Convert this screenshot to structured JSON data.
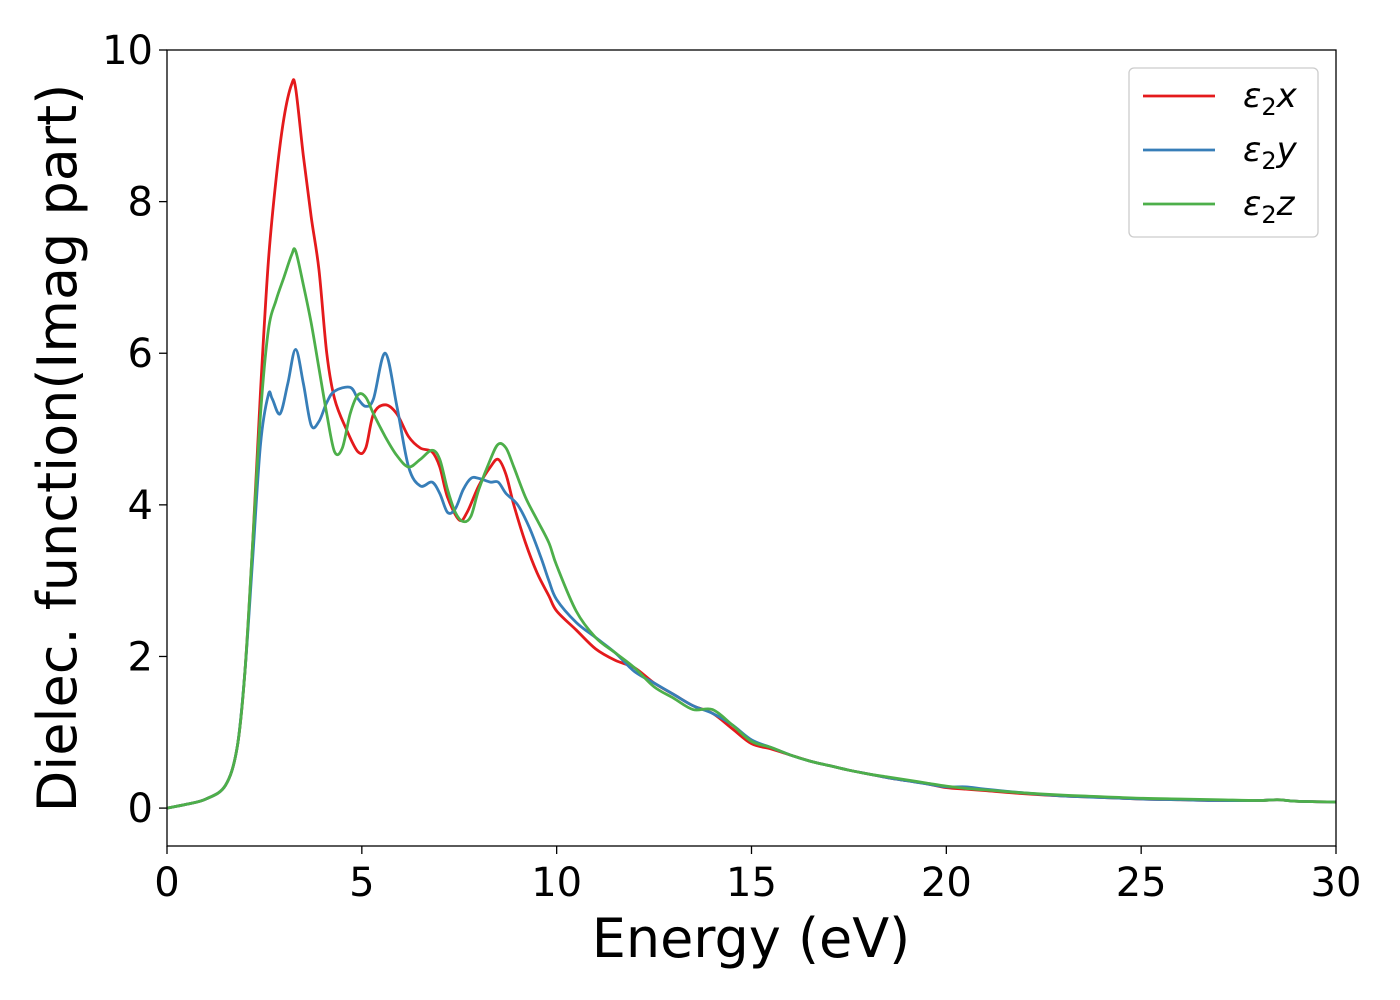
{
  "chart_data": {
    "type": "line",
    "xlabel": "Energy (eV)",
    "ylabel": "Dielec. function(Imag part)",
    "xlim": [
      0,
      30
    ],
    "ylim": [
      -0.5,
      10
    ],
    "xticks": [
      0,
      5,
      10,
      15,
      20,
      25,
      30
    ],
    "yticks": [
      0,
      2,
      4,
      6,
      8,
      10
    ],
    "grid": false,
    "legend_position": "top-right",
    "series": [
      {
        "name": "ε2x",
        "legend": {
          "prefix": "ε",
          "sub": "2",
          "suffix": "x"
        },
        "color": "#e41a1c",
        "x": [
          0,
          0.5,
          1,
          1.5,
          1.8,
          2.0,
          2.2,
          2.4,
          2.6,
          2.8,
          3.0,
          3.2,
          3.3,
          3.5,
          3.7,
          3.9,
          4.1,
          4.3,
          4.6,
          4.9,
          5.1,
          5.3,
          5.6,
          5.9,
          6.2,
          6.5,
          6.8,
          7.0,
          7.2,
          7.5,
          7.7,
          8.0,
          8.3,
          8.5,
          8.7,
          8.9,
          9.2,
          9.5,
          9.8,
          10.0,
          10.5,
          11.0,
          11.5,
          12.0,
          12.5,
          13.0,
          13.5,
          14.0,
          14.5,
          15.0,
          15.5,
          16.0,
          16.5,
          17.0,
          17.5,
          18.0,
          18.5,
          19.0,
          19.5,
          20.0,
          20.5,
          21.0,
          22.0,
          23.0,
          24.0,
          25.0,
          26.0,
          27.0,
          28.0,
          28.5,
          29.0,
          30.0
        ],
        "values": [
          0,
          0.05,
          0.12,
          0.3,
          0.8,
          1.8,
          3.5,
          5.5,
          7.2,
          8.3,
          9.1,
          9.55,
          9.5,
          8.6,
          7.8,
          7.1,
          6.0,
          5.4,
          5.0,
          4.7,
          4.75,
          5.2,
          5.32,
          5.2,
          4.9,
          4.75,
          4.7,
          4.5,
          4.1,
          3.8,
          3.9,
          4.25,
          4.5,
          4.6,
          4.4,
          4.0,
          3.5,
          3.1,
          2.8,
          2.6,
          2.35,
          2.1,
          1.95,
          1.85,
          1.65,
          1.5,
          1.35,
          1.25,
          1.05,
          0.85,
          0.78,
          0.7,
          0.62,
          0.56,
          0.5,
          0.45,
          0.4,
          0.36,
          0.32,
          0.27,
          0.25,
          0.23,
          0.19,
          0.16,
          0.14,
          0.12,
          0.11,
          0.1,
          0.1,
          0.11,
          0.09,
          0.08
        ]
      },
      {
        "name": "ε2y",
        "legend": {
          "prefix": "ε",
          "sub": "2",
          "suffix": "y"
        },
        "color": "#377eb8",
        "x": [
          0,
          0.5,
          1,
          1.5,
          1.8,
          2.0,
          2.2,
          2.4,
          2.6,
          2.7,
          2.9,
          3.1,
          3.3,
          3.5,
          3.7,
          3.9,
          4.1,
          4.3,
          4.7,
          4.9,
          5.1,
          5.3,
          5.6,
          5.9,
          6.2,
          6.5,
          6.8,
          7.0,
          7.2,
          7.4,
          7.6,
          7.8,
          8.0,
          8.3,
          8.5,
          8.7,
          9.0,
          9.3,
          9.6,
          9.8,
          10.0,
          10.5,
          11.0,
          11.5,
          12.0,
          12.5,
          13.0,
          13.5,
          14.0,
          14.5,
          15.0,
          15.5,
          16.0,
          16.5,
          17.0,
          17.5,
          18.0,
          18.5,
          19.0,
          19.5,
          20.0,
          20.5,
          21.0,
          22.0,
          23.0,
          24.0,
          25.0,
          26.0,
          27.0,
          28.0,
          28.5,
          29.0,
          30.0
        ],
        "values": [
          0,
          0.05,
          0.12,
          0.3,
          0.8,
          1.8,
          3.3,
          4.8,
          5.45,
          5.4,
          5.2,
          5.6,
          6.05,
          5.6,
          5.05,
          5.1,
          5.35,
          5.5,
          5.55,
          5.4,
          5.3,
          5.4,
          6.0,
          5.3,
          4.5,
          4.25,
          4.3,
          4.15,
          3.9,
          3.95,
          4.2,
          4.35,
          4.35,
          4.3,
          4.3,
          4.15,
          4.0,
          3.7,
          3.3,
          3.0,
          2.75,
          2.45,
          2.25,
          2.05,
          1.8,
          1.65,
          1.5,
          1.35,
          1.25,
          1.1,
          0.9,
          0.8,
          0.7,
          0.62,
          0.56,
          0.5,
          0.45,
          0.4,
          0.36,
          0.32,
          0.28,
          0.28,
          0.25,
          0.2,
          0.16,
          0.14,
          0.12,
          0.11,
          0.1,
          0.1,
          0.11,
          0.09,
          0.08
        ]
      },
      {
        "name": "ε2z",
        "legend": {
          "prefix": "ε",
          "sub": "2",
          "suffix": "z"
        },
        "color": "#4daf4a",
        "x": [
          0,
          0.5,
          1,
          1.5,
          1.8,
          2.0,
          2.2,
          2.4,
          2.6,
          2.8,
          3.0,
          3.2,
          3.3,
          3.5,
          3.7,
          3.9,
          4.1,
          4.3,
          4.5,
          4.7,
          4.9,
          5.1,
          5.3,
          5.6,
          5.9,
          6.2,
          6.5,
          6.8,
          7.0,
          7.2,
          7.4,
          7.6,
          7.8,
          8.0,
          8.3,
          8.5,
          8.7,
          8.9,
          9.2,
          9.5,
          9.8,
          10.0,
          10.5,
          11.0,
          11.5,
          12.0,
          12.5,
          13.0,
          13.5,
          14.0,
          14.5,
          15.0,
          15.5,
          16.0,
          16.5,
          17.0,
          17.5,
          18.0,
          18.5,
          19.0,
          19.5,
          20.0,
          20.5,
          21.0,
          22.0,
          23.0,
          24.0,
          25.0,
          26.0,
          27.0,
          28.0,
          28.5,
          29.0,
          30.0
        ],
        "values": [
          0,
          0.05,
          0.12,
          0.3,
          0.8,
          1.8,
          3.5,
          5.2,
          6.3,
          6.7,
          7.0,
          7.3,
          7.35,
          6.9,
          6.4,
          5.8,
          5.2,
          4.7,
          4.75,
          5.2,
          5.45,
          5.42,
          5.2,
          4.9,
          4.65,
          4.5,
          4.6,
          4.72,
          4.6,
          4.2,
          3.9,
          3.78,
          3.85,
          4.2,
          4.6,
          4.8,
          4.75,
          4.5,
          4.1,
          3.8,
          3.5,
          3.2,
          2.6,
          2.25,
          2.05,
          1.85,
          1.6,
          1.45,
          1.3,
          1.3,
          1.1,
          0.88,
          0.8,
          0.7,
          0.62,
          0.56,
          0.5,
          0.45,
          0.41,
          0.37,
          0.33,
          0.29,
          0.26,
          0.24,
          0.2,
          0.17,
          0.15,
          0.13,
          0.12,
          0.11,
          0.1,
          0.11,
          0.09,
          0.08
        ]
      }
    ]
  }
}
